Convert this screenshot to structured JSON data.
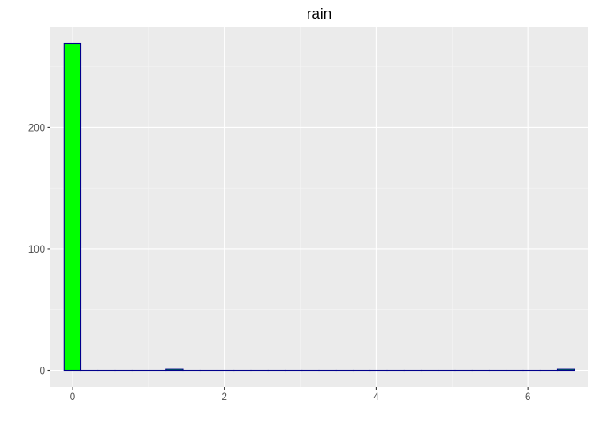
{
  "chart_data": {
    "type": "bar",
    "subtype": "histogram",
    "title": "rain",
    "xlabel": "",
    "ylabel": "",
    "xlim": [
      -0.29,
      6.79
    ],
    "ylim": [
      -13.45,
      282.45
    ],
    "x_ticks": [
      0,
      2,
      4,
      6
    ],
    "x_tick_labels": [
      "0",
      "2",
      "4",
      "6"
    ],
    "y_ticks": [
      0,
      100,
      200
    ],
    "y_tick_labels": [
      "0",
      "100",
      "200"
    ],
    "grid": true,
    "legend": "none",
    "bin_width": 0.2241,
    "bin_centers": [
      0,
      0.2241,
      0.4483,
      0.6724,
      0.8966,
      1.1207,
      1.3448,
      1.569,
      1.7931,
      2.0172,
      2.2414,
      2.4655,
      2.6897,
      2.9138,
      3.1379,
      3.3621,
      3.5862,
      3.8103,
      4.0345,
      4.2586,
      4.4828,
      4.7069,
      4.931,
      5.1552,
      5.3793,
      5.6034,
      5.8276,
      6.0517,
      6.2759,
      6.5
    ],
    "counts": [
      269,
      0,
      0,
      0,
      0,
      0,
      1,
      0,
      0,
      0,
      0,
      0,
      0,
      0,
      0,
      0,
      0,
      0,
      0,
      0,
      0,
      0,
      0,
      0,
      0,
      0,
      0,
      0,
      0,
      1
    ],
    "colors": {
      "panel_background": "#ebebeb",
      "grid_major": "#ffffff",
      "grid_minor": "#f5f5f5",
      "bar_fill": "#00ff00",
      "bar_outline": "#00008b",
      "tick": "#333333"
    }
  }
}
